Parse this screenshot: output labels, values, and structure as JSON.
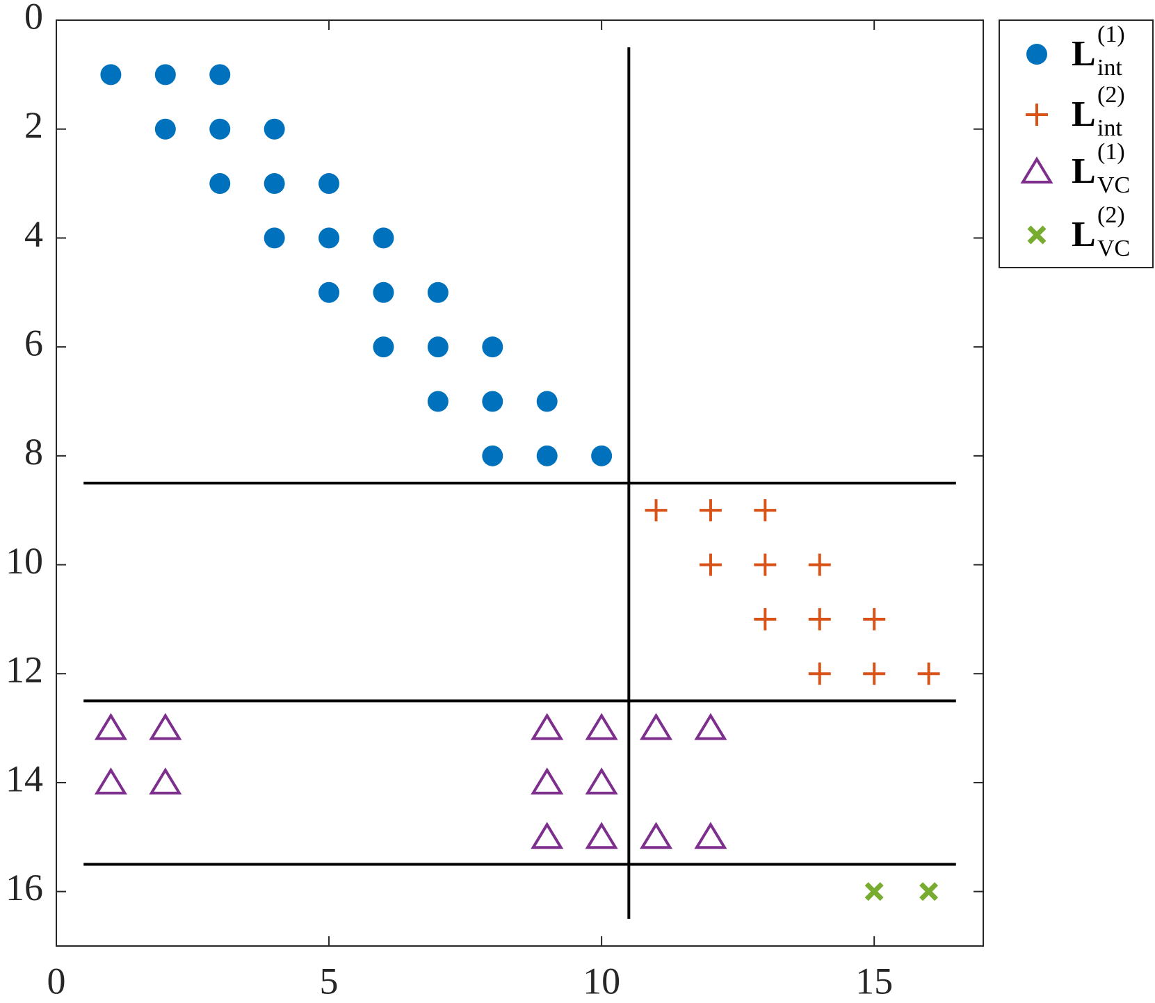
{
  "chart_data": {
    "type": "scatter",
    "xlim": [
      0,
      17
    ],
    "ylim": [
      0,
      17
    ],
    "y_inverted": true,
    "xticks": [
      0,
      5,
      10,
      15
    ],
    "yticks": [
      0,
      2,
      4,
      6,
      8,
      10,
      12,
      14,
      16
    ],
    "legend": "outside-right",
    "series": [
      {
        "name": "L",
        "superscript": "(1)",
        "subscript": "int",
        "marker": "circle",
        "color": "#0072BD",
        "x": [
          1,
          2,
          3,
          2,
          3,
          4,
          3,
          4,
          5,
          4,
          5,
          6,
          5,
          6,
          7,
          6,
          7,
          8,
          7,
          8,
          9,
          8,
          9,
          10
        ],
        "y": [
          1,
          1,
          1,
          2,
          2,
          2,
          3,
          3,
          3,
          4,
          4,
          4,
          5,
          5,
          5,
          6,
          6,
          6,
          7,
          7,
          7,
          8,
          8,
          8
        ]
      },
      {
        "name": "L",
        "superscript": "(2)",
        "subscript": "int",
        "marker": "plus",
        "color": "#D95319",
        "x": [
          11,
          12,
          13,
          12,
          13,
          14,
          13,
          14,
          15,
          14,
          15,
          16
        ],
        "y": [
          9,
          9,
          9,
          10,
          10,
          10,
          11,
          11,
          11,
          12,
          12,
          12
        ]
      },
      {
        "name": "L",
        "superscript": "(1)",
        "subscript": "VC",
        "marker": "triangle",
        "color": "#7E2F8E",
        "x": [
          1,
          2,
          9,
          10,
          11,
          12,
          1,
          2,
          9,
          10,
          9,
          10,
          11,
          12
        ],
        "y": [
          13,
          13,
          13,
          13,
          13,
          13,
          14,
          14,
          14,
          14,
          15,
          15,
          15,
          15
        ]
      },
      {
        "name": "L",
        "superscript": "(2)",
        "subscript": "VC",
        "marker": "x",
        "color": "#77AC30",
        "x": [
          15,
          16
        ],
        "y": [
          16,
          16
        ]
      }
    ],
    "lines": [
      {
        "x": [
          10.5,
          10.5
        ],
        "y": [
          0.5,
          16.5
        ],
        "color": "#000000"
      },
      {
        "x": [
          0.5,
          16.5
        ],
        "y": [
          8.5,
          8.5
        ],
        "color": "#000000"
      },
      {
        "x": [
          0.5,
          16.5
        ],
        "y": [
          12.5,
          12.5
        ],
        "color": "#000000"
      },
      {
        "x": [
          0.5,
          16.5
        ],
        "y": [
          15.5,
          15.5
        ],
        "color": "#000000"
      }
    ]
  }
}
